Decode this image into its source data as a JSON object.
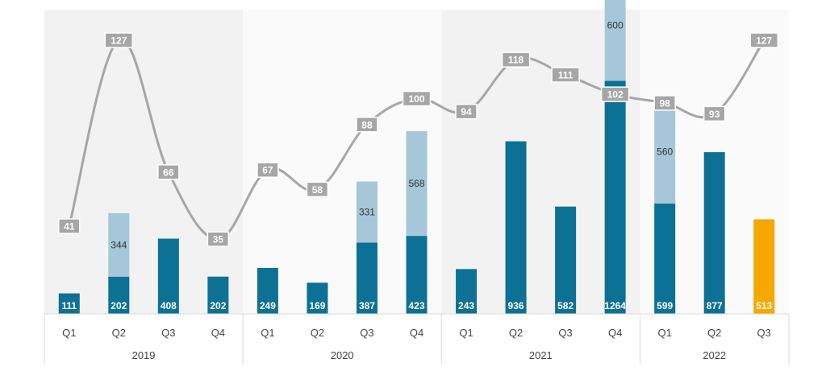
{
  "chart_data": {
    "type": "bar",
    "title": "",
    "xlabel": "",
    "ylabel": "",
    "years": [
      {
        "label": "2019",
        "quarters": [
          "Q1",
          "Q2",
          "Q3",
          "Q4"
        ]
      },
      {
        "label": "2020",
        "quarters": [
          "Q1",
          "Q2",
          "Q3",
          "Q4"
        ]
      },
      {
        "label": "2021",
        "quarters": [
          "Q1",
          "Q2",
          "Q3",
          "Q4"
        ]
      },
      {
        "label": "2022",
        "quarters": [
          "Q1",
          "Q2",
          "Q3"
        ]
      }
    ],
    "categories": [
      "2019 Q1",
      "2019 Q2",
      "2019 Q3",
      "2019 Q4",
      "2020 Q1",
      "2020 Q2",
      "2020 Q3",
      "2020 Q4",
      "2021 Q1",
      "2021 Q2",
      "2021 Q3",
      "2021 Q4",
      "2022 Q1",
      "2022 Q2",
      "2022 Q3"
    ],
    "series": [
      {
        "name": "",
        "kind": "bar",
        "values": [
          111,
          202,
          408,
          202,
          249,
          169,
          387,
          423,
          243,
          936,
          582,
          1264,
          599,
          877,
          513
        ]
      },
      {
        "name": "",
        "kind": "bar-stacked",
        "values": [
          null,
          344,
          null,
          null,
          null,
          null,
          331,
          568,
          null,
          null,
          null,
          600,
          560,
          null,
          null
        ]
      },
      {
        "name": "",
        "kind": "line",
        "values": [
          41,
          127,
          66,
          35,
          67,
          58,
          88,
          100,
          94,
          118,
          111,
          102,
          98,
          93,
          127
        ]
      }
    ],
    "highlight_index": 14,
    "bar_ylim": [
      0,
      1650
    ],
    "line_ylim": [
      0,
      140
    ],
    "grid": false,
    "colors": {
      "bar_primary": "#0d7195",
      "bar_secondary": "#a6c7d9",
      "bar_highlight": "#f6a800",
      "line": "#a6a6a6",
      "line_label_bg": "#a6a6a6",
      "band_dark": "#f2f2f2",
      "band_light": "#fafafa",
      "axis": "#d9d9d9"
    }
  }
}
